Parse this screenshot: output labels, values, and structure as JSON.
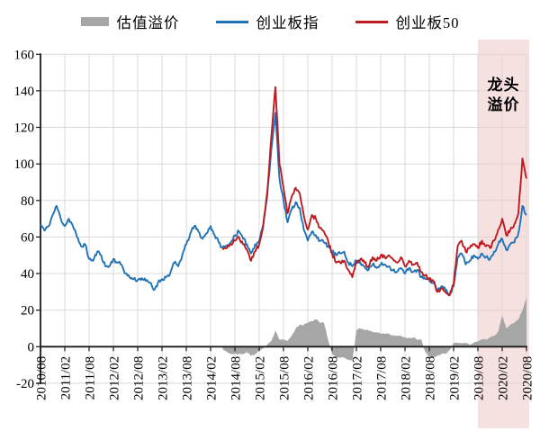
{
  "legend": {
    "items": [
      {
        "label": "估值溢价",
        "type": "bar",
        "color": "#A6A6A6"
      },
      {
        "label": "创业板指",
        "type": "line",
        "color": "#2173B5"
      },
      {
        "label": "创业板50",
        "type": "line",
        "color": "#BE1B20"
      }
    ]
  },
  "annotation": {
    "text": "龙头\n溢价"
  },
  "colors": {
    "grid": "#D9D9D9",
    "axis": "#1A1A1A",
    "highlight": "#EEC8C8",
    "blue_line": "#2173B5",
    "red_line": "#BE1B20",
    "gray_area": "#A6A6A6"
  },
  "chart_data": {
    "type": "line",
    "title": "",
    "x_start": "2010/08",
    "x_end": "2020/08",
    "x_frequency": "monthly",
    "points": 121,
    "x_tick_labels": [
      "2010/08",
      "2011/02",
      "2011/08",
      "2012/02",
      "2012/08",
      "2013/02",
      "2013/08",
      "2014/02",
      "2014/08",
      "2015/02",
      "2015/08",
      "2016/02",
      "2016/08",
      "2017/02",
      "2017/08",
      "2018/02",
      "2018/08",
      "2019/02",
      "2019/08",
      "2020/02",
      "2020/08"
    ],
    "y_ticks": [
      160,
      140,
      120,
      100,
      80,
      60,
      40,
      20,
      0,
      -20
    ],
    "ylim": [
      -20,
      160
    ],
    "grid": true,
    "legend_position": "top",
    "highlight_region": {
      "from": "2019/08",
      "to": "2020/08",
      "label": "龙头溢价",
      "color": "#EEC8C8"
    },
    "series": [
      {
        "name": "估值溢价",
        "type": "area",
        "color": "#A6A6A6",
        "start": "2014/05",
        "start_index": 45,
        "values": [
          -1,
          -3,
          -4,
          -4,
          -4,
          -4,
          -3,
          -5,
          -4,
          -2,
          -1,
          1,
          3,
          9,
          4,
          4,
          3,
          6,
          10,
          12,
          12,
          13,
          14,
          15,
          13,
          13,
          4,
          -4,
          -6,
          -6,
          -6,
          -7,
          -8,
          9,
          10,
          9,
          9,
          8,
          8,
          7,
          7,
          7,
          6,
          6,
          6,
          5,
          5,
          5,
          4,
          4,
          -3,
          -6,
          -6,
          -5,
          -4,
          -4,
          -2,
          2,
          2,
          2,
          2,
          1,
          2,
          3,
          4,
          4,
          5,
          6,
          8,
          17,
          10,
          12,
          13,
          15,
          20,
          27
        ]
      },
      {
        "name": "创业板指",
        "type": "line",
        "color": "#2173B5",
        "start": "2010/08",
        "start_index": 0,
        "values": [
          67,
          63.5,
          66,
          72,
          77,
          70,
          66,
          70,
          66,
          60,
          55,
          56,
          48,
          47,
          52,
          50,
          44,
          44,
          48,
          46,
          45,
          40,
          38,
          37,
          36.5,
          37.5,
          36,
          35,
          31,
          35,
          37,
          38,
          40,
          46,
          44,
          50,
          56,
          62,
          66,
          63,
          59,
          62,
          66,
          61,
          57,
          54,
          55,
          57,
          61,
          63,
          59,
          56,
          51,
          56,
          58,
          67,
          83,
          108,
          128,
          92,
          80,
          68,
          75,
          79,
          76,
          64,
          58,
          63,
          61,
          58,
          57,
          55,
          52,
          50,
          51,
          52,
          46,
          44,
          47,
          46,
          44,
          42,
          45,
          43,
          45,
          45,
          44,
          42,
          41,
          43,
          40,
          43,
          41,
          42,
          38,
          37,
          36,
          35,
          31,
          33,
          31,
          29,
          33,
          49,
          51,
          45,
          47,
          50,
          48,
          51,
          49,
          48,
          52,
          56,
          59,
          53,
          56,
          57,
          62,
          77,
          72
        ]
      },
      {
        "name": "创业板50",
        "type": "line",
        "color": "#BE1B20",
        "start": "2014/05",
        "start_index": 45,
        "values": [
          53,
          54,
          56,
          58,
          60,
          56,
          53,
          47,
          52,
          56,
          66,
          85,
          115,
          142,
          100,
          87,
          73,
          82,
          87,
          84,
          72,
          64,
          72,
          70,
          65,
          63,
          58,
          51,
          46,
          46,
          47,
          42,
          38,
          46,
          48,
          46,
          44,
          49,
          47,
          50,
          49,
          50,
          48,
          46,
          49,
          44,
          47,
          45,
          46,
          41,
          39,
          37,
          36,
          30,
          32,
          30,
          28,
          34,
          55,
          58,
          52,
          54,
          56,
          54,
          58,
          55,
          54,
          58,
          64,
          70,
          61,
          64,
          67,
          73,
          103,
          92
        ]
      }
    ]
  }
}
